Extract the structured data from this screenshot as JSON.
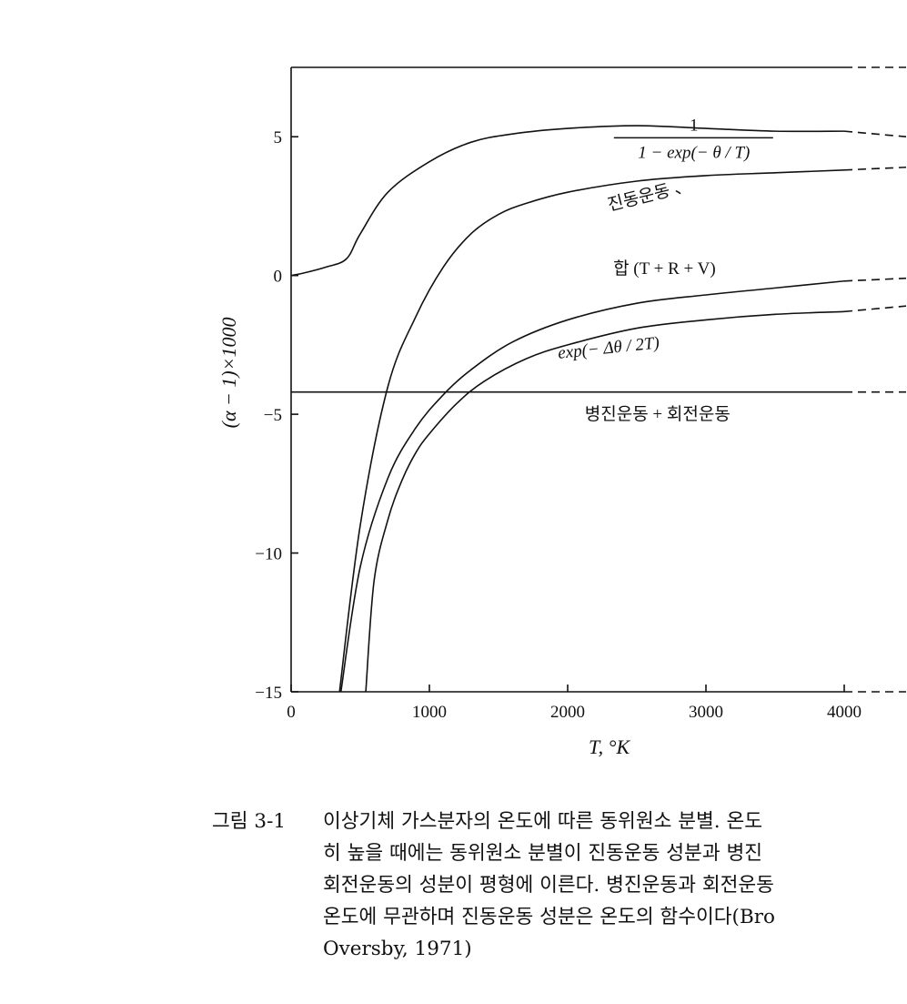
{
  "chart_data": {
    "type": "line",
    "title": "",
    "xlabel": "T, °K",
    "ylabel": "(α − 1)×1000",
    "xlim": [
      0,
      4000
    ],
    "ylim": [
      -15,
      7.5
    ],
    "x_ticks": [
      0,
      1000,
      2000,
      3000,
      4000
    ],
    "x_tick_labels": [
      "0",
      "1000",
      "2000",
      "3000",
      "4000"
    ],
    "y_ticks": [
      5,
      0,
      -5,
      -10,
      -15
    ],
    "y_tick_labels": [
      "5",
      "0",
      "−5",
      "−10",
      "−15"
    ],
    "grid": false,
    "legend": "none",
    "series": [
      {
        "label": "1 / (1 − exp(− θ / T))",
        "x": [
          0,
          100,
          250,
          400,
          500,
          700,
          1000,
          1300,
          1600,
          2000,
          2500,
          3000,
          3500,
          4000
        ],
        "y": [
          0,
          0.1,
          0.3,
          0.6,
          1.5,
          3.0,
          4.1,
          4.8,
          5.1,
          5.3,
          5.4,
          5.3,
          5.2,
          5.2
        ]
      },
      {
        "label": "진동운동",
        "x": [
          350,
          500,
          700,
          900,
          1100,
          1300,
          1500,
          1700,
          2000,
          2500,
          3000,
          3500,
          4000
        ],
        "y": [
          -15,
          -9,
          -4,
          -1.5,
          0.3,
          1.5,
          2.2,
          2.6,
          3.0,
          3.4,
          3.6,
          3.7,
          3.8
        ]
      },
      {
        "label": "합 (T + R + V)",
        "x": [
          360,
          500,
          700,
          900,
          1100,
          1300,
          1600,
          2000,
          2500,
          3000,
          3500,
          4000
        ],
        "y": [
          -15,
          -10.5,
          -7.3,
          -5.5,
          -4.3,
          -3.4,
          -2.4,
          -1.6,
          -1.0,
          -0.7,
          -0.45,
          -0.2
        ]
      },
      {
        "label": "exp(− Δθ / 2T)",
        "x": [
          540,
          600,
          700,
          800,
          900,
          1000,
          1200,
          1400,
          1700,
          2000,
          2500,
          3000,
          3500,
          4000
        ],
        "y": [
          -15,
          -11,
          -8.8,
          -7.4,
          -6.4,
          -5.7,
          -4.6,
          -3.8,
          -3.0,
          -2.5,
          -1.9,
          -1.6,
          -1.4,
          -1.3
        ]
      },
      {
        "label": "병진운동 + 회전운동",
        "x": [
          0,
          4000
        ],
        "y": [
          -4.2,
          -4.2
        ]
      }
    ],
    "extensions": [
      {
        "x": [
          4000,
          4460
        ],
        "y": [
          5.2,
          5.0
        ]
      },
      {
        "x": [
          4000,
          4460
        ],
        "y": [
          3.8,
          3.9
        ]
      },
      {
        "x": [
          4000,
          4460
        ],
        "y": [
          -0.2,
          -0.1
        ]
      },
      {
        "x": [
          4000,
          4460
        ],
        "y": [
          -1.3,
          -1.1
        ]
      },
      {
        "x": [
          4000,
          4460
        ],
        "y": [
          -4.2,
          -4.2
        ]
      },
      {
        "x": [
          4000,
          4460
        ],
        "y": [
          -15,
          -15
        ]
      },
      {
        "x": [
          4000,
          4460
        ],
        "y": [
          7.5,
          7.5
        ]
      }
    ],
    "annotations": [
      {
        "text_num": "1",
        "text_den": "1 − exp(− θ / T)",
        "kind": "fraction",
        "x": 2400,
        "y": 4.7
      },
      {
        "text": "진동운동 、",
        "x": 2600,
        "y": 2.7,
        "rotate": -14
      },
      {
        "text": "합 (T + R + V)",
        "x": 2700,
        "y": 0.05
      },
      {
        "text": "exp(− Δθ / 2T)",
        "x": 2300,
        "y": -2.8,
        "italic": true,
        "rotate": -6
      },
      {
        "text": "병진운동 + 회전운동",
        "x": 2650,
        "y": -5.2
      }
    ]
  },
  "caption": {
    "label": "그림 3-1",
    "lines": [
      "이상기체 가스분자의 온도에 따른 동위원소 분별. 온도",
      "히 높을 때에는 동위원소 분별이 진동운동 성분과 병진",
      "회전운동의 성분이 평형에 이른다. 병진운동과 회전운동",
      "온도에 무관하며 진동운동 성분은 온도의 함수이다(Bro",
      "Oversby, 1971)"
    ]
  }
}
